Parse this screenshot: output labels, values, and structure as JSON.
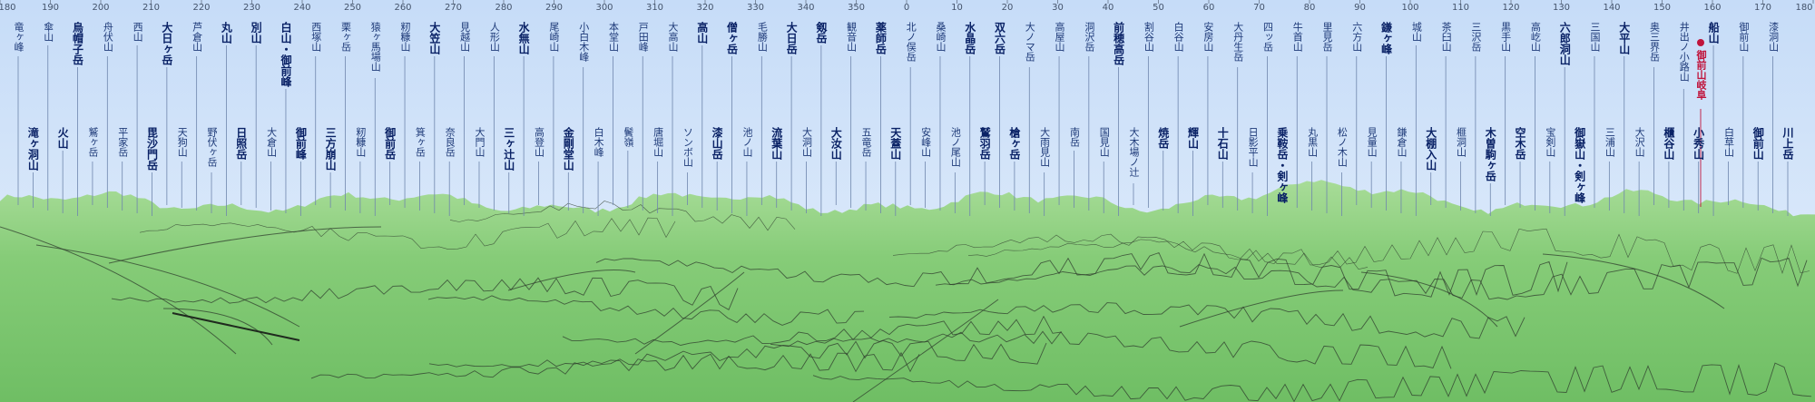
{
  "view": {
    "type": "panorama",
    "sky_color": "#cfe3fb",
    "ground_color": "#7cc66f",
    "highlight_color": "#c0143c",
    "label_color": "#1e3a78"
  },
  "bearing_ticks": [
    "180",
    "190",
    "200",
    "210",
    "220",
    "230",
    "240",
    "250",
    "260",
    "270",
    "280",
    "290",
    "300",
    "310",
    "320",
    "330",
    "340",
    "350",
    "0",
    "10",
    "20",
    "30",
    "40",
    "50",
    "60",
    "70",
    "80",
    "90",
    "100",
    "110",
    "120",
    "130",
    "140",
    "150",
    "160",
    "170",
    "180"
  ],
  "peaks": [
    {
      "name": "竜ヶ峰",
      "bold": false
    },
    {
      "name": "滝ヶ洞山",
      "bold": true
    },
    {
      "name": "傘山",
      "bold": false
    },
    {
      "name": "火山",
      "bold": true
    },
    {
      "name": "烏帽子岳",
      "bold": true
    },
    {
      "name": "鷲ヶ岳",
      "bold": false
    },
    {
      "name": "舟伏山",
      "bold": false
    },
    {
      "name": "平家岳",
      "bold": false
    },
    {
      "name": "西山",
      "bold": false
    },
    {
      "name": "毘沙門岳",
      "bold": true
    },
    {
      "name": "大日ヶ岳",
      "bold": true
    },
    {
      "name": "天狗山",
      "bold": false
    },
    {
      "name": "芦倉山",
      "bold": false
    },
    {
      "name": "野伏ヶ岳",
      "bold": false
    },
    {
      "name": "丸山",
      "bold": true
    },
    {
      "name": "日照岳",
      "bold": true
    },
    {
      "name": "別山",
      "bold": true
    },
    {
      "name": "大倉山",
      "bold": false
    },
    {
      "name": "白山・御前峰",
      "bold": true
    },
    {
      "name": "御前峰",
      "bold": true
    },
    {
      "name": "西塚山",
      "bold": false
    },
    {
      "name": "三方崩山",
      "bold": true
    },
    {
      "name": "栗ヶ岳",
      "bold": false
    },
    {
      "name": "籾糠山",
      "bold": false
    },
    {
      "name": "猿ヶ馬場山",
      "bold": false
    },
    {
      "name": "御前岳",
      "bold": true
    },
    {
      "name": "籾糠山",
      "bold": false
    },
    {
      "name": "箕ヶ岳",
      "bold": false
    },
    {
      "name": "大笠山",
      "bold": true
    },
    {
      "name": "奈良岳",
      "bold": false
    },
    {
      "name": "見越山",
      "bold": false
    },
    {
      "name": "大門山",
      "bold": false
    },
    {
      "name": "人形山",
      "bold": false
    },
    {
      "name": "三ヶ辻山",
      "bold": true
    },
    {
      "name": "水無山",
      "bold": true
    },
    {
      "name": "高登山",
      "bold": false
    },
    {
      "name": "尾崎山",
      "bold": false
    },
    {
      "name": "金剛堂山",
      "bold": true
    },
    {
      "name": "小白木峰",
      "bold": false
    },
    {
      "name": "白木峰",
      "bold": false
    },
    {
      "name": "本堂山",
      "bold": false
    },
    {
      "name": "鬢嶺",
      "bold": false
    },
    {
      "name": "戸田峰",
      "bold": false
    },
    {
      "name": "唐堀山",
      "bold": false
    },
    {
      "name": "大高山",
      "bold": false
    },
    {
      "name": "ソンボ山",
      "bold": false
    },
    {
      "name": "高山",
      "bold": true
    },
    {
      "name": "漆山岳",
      "bold": true
    },
    {
      "name": "僧ヶ岳",
      "bold": true
    },
    {
      "name": "池ノ山",
      "bold": false
    },
    {
      "name": "毛勝山",
      "bold": false
    },
    {
      "name": "流葉山",
      "bold": true
    },
    {
      "name": "大日岳",
      "bold": true
    },
    {
      "name": "大洞山",
      "bold": false
    },
    {
      "name": "剱岳",
      "bold": true
    },
    {
      "name": "大汝山",
      "bold": true
    },
    {
      "name": "観音山",
      "bold": false
    },
    {
      "name": "五竜岳",
      "bold": false
    },
    {
      "name": "薬師岳",
      "bold": true
    },
    {
      "name": "天蓋山",
      "bold": true
    },
    {
      "name": "北ノ俣岳",
      "bold": false
    },
    {
      "name": "安峰山",
      "bold": false
    },
    {
      "name": "桑崎山",
      "bold": false
    },
    {
      "name": "池ノ尾山",
      "bold": false
    },
    {
      "name": "水晶岳",
      "bold": true
    },
    {
      "name": "鷲羽岳",
      "bold": true
    },
    {
      "name": "双六岳",
      "bold": true
    },
    {
      "name": "槍ヶ岳",
      "bold": true
    },
    {
      "name": "大ノマ岳",
      "bold": false
    },
    {
      "name": "大雨見山",
      "bold": false
    },
    {
      "name": "高屋山",
      "bold": false
    },
    {
      "name": "南岳",
      "bold": false
    },
    {
      "name": "洞沢岳",
      "bold": false
    },
    {
      "name": "国見山",
      "bold": false
    },
    {
      "name": "前穂高岳",
      "bold": true
    },
    {
      "name": "大木場ノ辻",
      "bold": false
    },
    {
      "name": "割谷山",
      "bold": false
    },
    {
      "name": "焼岳",
      "bold": true
    },
    {
      "name": "白谷山",
      "bold": false
    },
    {
      "name": "輝山",
      "bold": true
    },
    {
      "name": "安房山",
      "bold": false
    },
    {
      "name": "十石山",
      "bold": true
    },
    {
      "name": "大丹生岳",
      "bold": false
    },
    {
      "name": "日影平山",
      "bold": false
    },
    {
      "name": "四ッ岳",
      "bold": false
    },
    {
      "name": "乗鞍岳・剣ヶ峰",
      "bold": true
    },
    {
      "name": "牛首山",
      "bold": false
    },
    {
      "name": "丸黒山",
      "bold": false
    },
    {
      "name": "里見岳",
      "bold": false
    },
    {
      "name": "松ノ木山",
      "bold": false
    },
    {
      "name": "六方山",
      "bold": false
    },
    {
      "name": "見量山",
      "bold": false
    },
    {
      "name": "鎌ヶ峰",
      "bold": true
    },
    {
      "name": "鎌倉山",
      "bold": false
    },
    {
      "name": "城山",
      "bold": false
    },
    {
      "name": "大棚入山",
      "bold": true
    },
    {
      "name": "茶臼山",
      "bold": false
    },
    {
      "name": "榧洞山",
      "bold": false
    },
    {
      "name": "三沢岳",
      "bold": false
    },
    {
      "name": "木曽駒ヶ岳",
      "bold": true
    },
    {
      "name": "黒手山",
      "bold": false
    },
    {
      "name": "空木岳",
      "bold": true
    },
    {
      "name": "高屹山",
      "bold": false
    },
    {
      "name": "宝剣山",
      "bold": false
    },
    {
      "name": "六郎洞山",
      "bold": true
    },
    {
      "name": "御嶽山・剣ヶ峰",
      "bold": true
    },
    {
      "name": "三国山",
      "bold": false
    },
    {
      "name": "三浦山",
      "bold": false
    },
    {
      "name": "大平山",
      "bold": true
    },
    {
      "name": "大沢山",
      "bold": false
    },
    {
      "name": "奥三界岳",
      "bold": false
    },
    {
      "name": "櫃谷山",
      "bold": true
    },
    {
      "name": "井出ノ小路山",
      "bold": false
    },
    {
      "name": "小秀山",
      "bold": true
    },
    {
      "name": "船山",
      "bold": true
    },
    {
      "name": "白草山",
      "bold": false
    },
    {
      "name": "御前山",
      "bold": false
    },
    {
      "name": "御前山",
      "bold": true
    },
    {
      "name": "漆洞山",
      "bold": false
    },
    {
      "name": "川上岳",
      "bold": true
    }
  ],
  "observer": {
    "name": "御前山岐阜",
    "bold": true
  }
}
